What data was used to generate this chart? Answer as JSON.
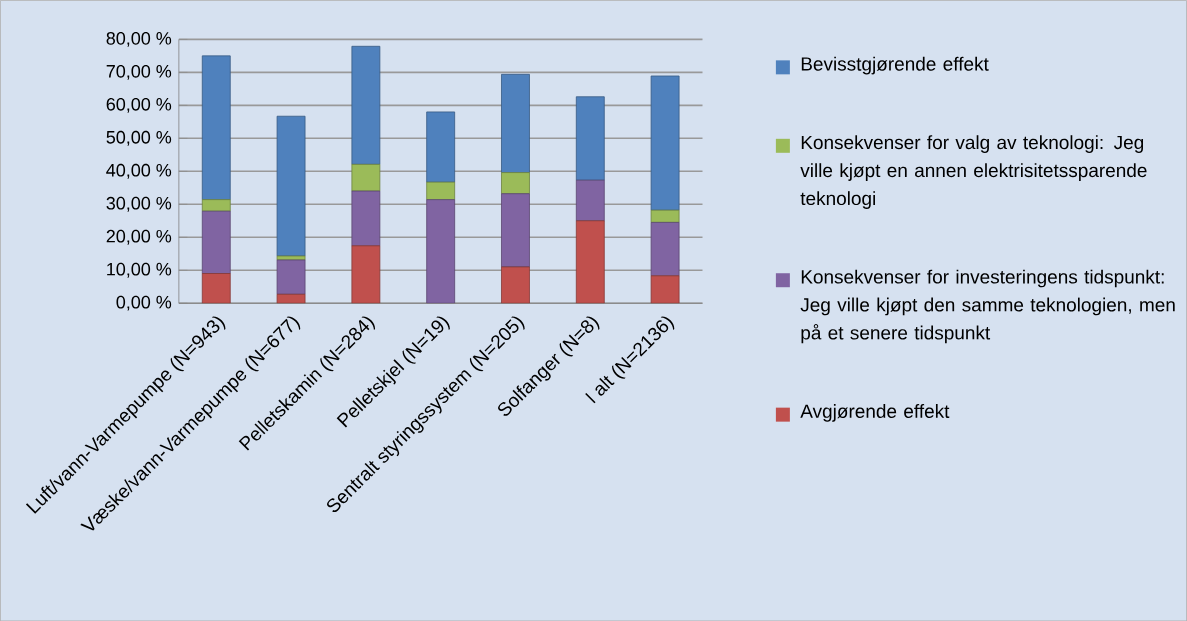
{
  "chart_data": {
    "type": "bar",
    "stacked": true,
    "categories": [
      "Luft/vann-Varmepumpe (N=943)",
      "Væske/vann-Varmepumpe (N=677)",
      "Pelletskamin (N=284)",
      "Pelletskjel (N=19)",
      "Sentralt styringssystem (N=205)",
      "Solfanger (N=8)",
      "I alt (N=2136)"
    ],
    "series": [
      {
        "name": "Avgjørende effekt",
        "color": "#c0504d",
        "values": [
          9.0,
          2.7,
          17.4,
          0,
          11.0,
          25.0,
          8.3
        ]
      },
      {
        "name": "Konsekvenser for investeringens tidspunkt: Jeg ville kjøpt den samme teknologien, men på et senere tidspunkt",
        "color": "#8064a2",
        "values": [
          18.9,
          10.4,
          16.6,
          31.4,
          22.2,
          12.3,
          16.2
        ]
      },
      {
        "name": "Konsekvenser for valg av teknologi: Jeg ville kjøpt en annen elektrisitetssparende teknologi",
        "color": "#9bbb59",
        "values": [
          3.5,
          1.2,
          8.1,
          5.3,
          6.4,
          0,
          3.7
        ]
      },
      {
        "name": "Bevisstgjørende effekt",
        "color": "#4f81bd",
        "values": [
          43.6,
          42.4,
          35.8,
          21.3,
          29.8,
          25.3,
          40.7
        ]
      }
    ],
    "ylim": [
      0,
      80
    ],
    "yticks": [
      {
        "value": 0,
        "label": "0,00 %"
      },
      {
        "value": 10,
        "label": "10,00 %"
      },
      {
        "value": 20,
        "label": "20,00 %"
      },
      {
        "value": 30,
        "label": "30,00 %"
      },
      {
        "value": 40,
        "label": "40,00 %"
      },
      {
        "value": 50,
        "label": "50,00 %"
      },
      {
        "value": 60,
        "label": "60,00 %"
      },
      {
        "value": 70,
        "label": "70,00 %"
      },
      {
        "value": 80,
        "label": "80,00 %"
      }
    ],
    "grid": "y",
    "legend": "right"
  }
}
